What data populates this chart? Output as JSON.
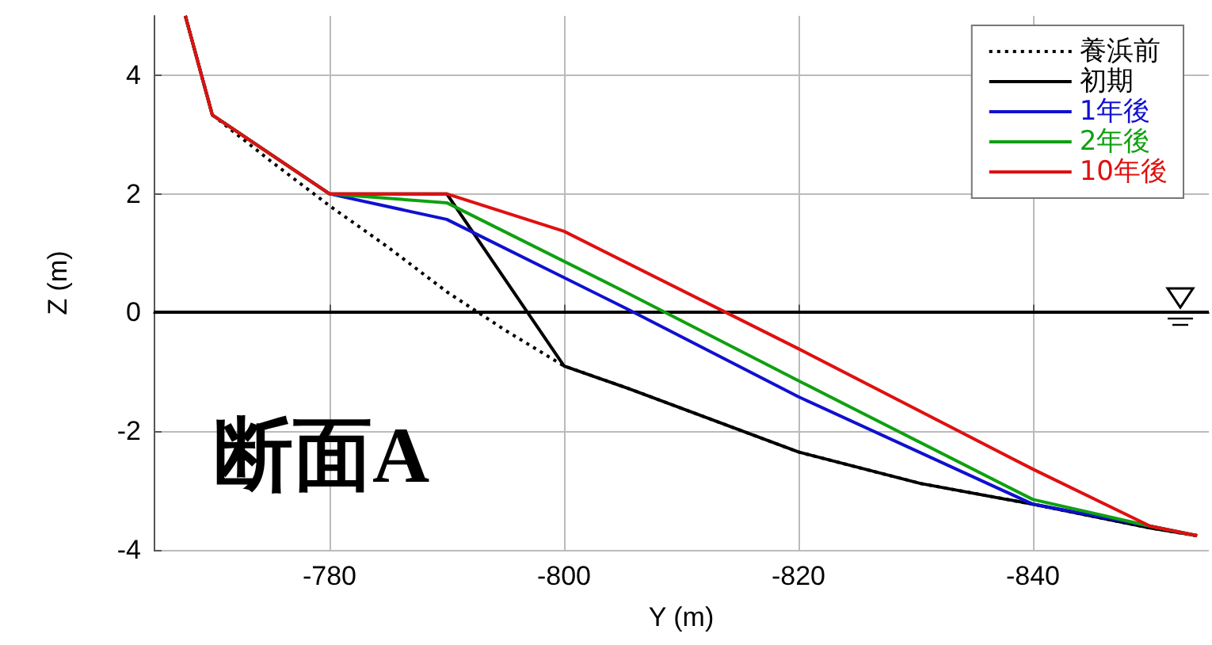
{
  "chart_data": {
    "type": "line",
    "xlabel": "Y (m)",
    "ylabel": "Z (m)",
    "xlim": [
      -765,
      -855
    ],
    "ylim": [
      -4,
      5
    ],
    "xticks": [
      -780,
      -800,
      -820,
      -840
    ],
    "yticks": [
      -4,
      -2,
      0,
      2,
      4
    ],
    "grid": true,
    "legend": "top right",
    "marker": "none",
    "ref_lines": [
      {
        "axis": "y",
        "value": 0,
        "color": "#000000"
      }
    ],
    "annotations": [
      "断面A"
    ],
    "series": [
      {
        "name": "養浜前",
        "color": "#000000",
        "line_style": "dotted",
        "x": [
          -767.7,
          -770,
          -775,
          -780,
          -785,
          -790,
          -795,
          -800,
          -805.5,
          -820,
          -830.4,
          -840,
          -850,
          -854
        ],
        "values": [
          5,
          3.33,
          2.55,
          1.8,
          1.1,
          0.35,
          -0.3,
          -0.9,
          -1.28,
          -2.35,
          -2.88,
          -3.23,
          -3.63,
          -3.76
        ]
      },
      {
        "name": "初期",
        "color": "#000000",
        "line_style": "solid",
        "x": [
          -767.7,
          -770,
          -780,
          -790,
          -800,
          -805.5,
          -820,
          -830.4,
          -840,
          -850,
          -854
        ],
        "values": [
          5,
          3.33,
          2,
          2,
          -0.9,
          -1.28,
          -2.35,
          -2.88,
          -3.23,
          -3.63,
          -3.76
        ]
      },
      {
        "name": "1年後",
        "color": "#1010d0",
        "line_style": "solid",
        "x": [
          -767.7,
          -770,
          -780,
          -790,
          -805.5,
          -820,
          -840,
          -850,
          -854
        ],
        "values": [
          5,
          3.33,
          2,
          1.57,
          0.05,
          -1.42,
          -3.23,
          -3.6,
          -3.76
        ]
      },
      {
        "name": "2年後",
        "color": "#10a010",
        "line_style": "solid",
        "x": [
          -767.7,
          -770,
          -780,
          -790,
          -805.5,
          -820,
          -840,
          -850,
          -854
        ],
        "values": [
          5,
          3.33,
          2,
          1.85,
          0.32,
          -1.15,
          -3.15,
          -3.6,
          -3.76
        ]
      },
      {
        "name": "10年後",
        "color": "#e01010",
        "line_style": "solid",
        "x": [
          -767.7,
          -770,
          -780,
          -790,
          -800,
          -820,
          -840,
          -850,
          -854
        ],
        "values": [
          5,
          3.33,
          2,
          2,
          1.37,
          -0.61,
          -2.64,
          -3.6,
          -3.76
        ]
      }
    ]
  }
}
